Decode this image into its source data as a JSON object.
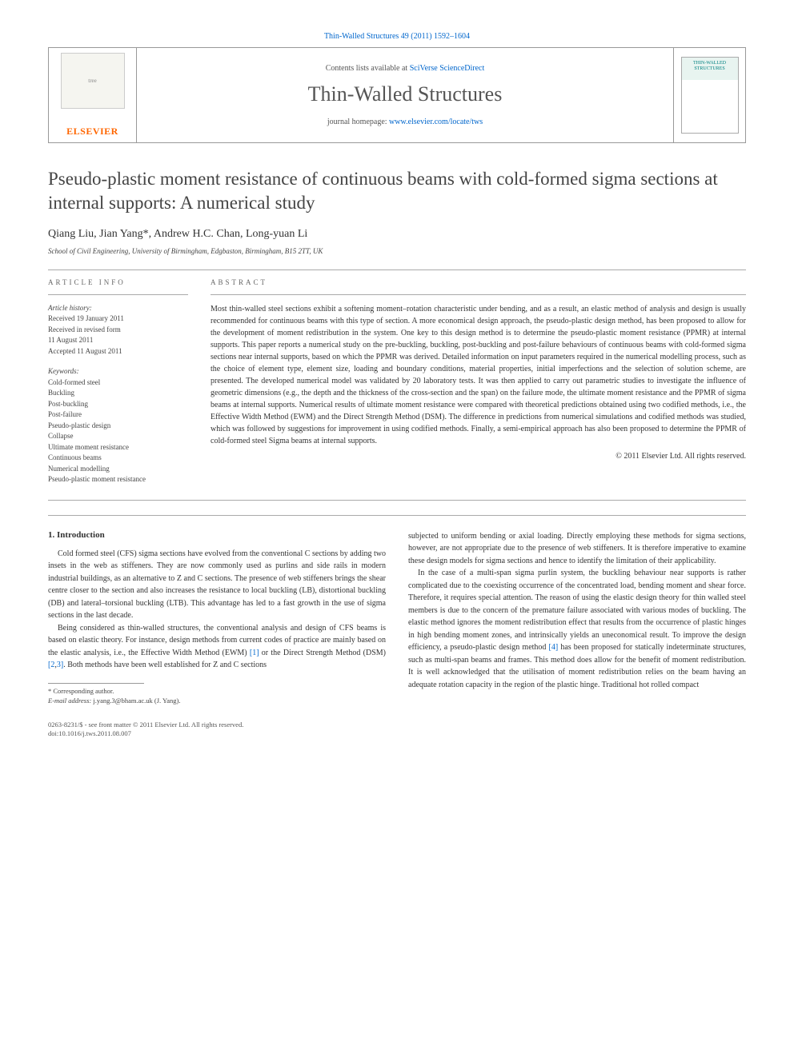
{
  "journal_ref": {
    "prefix": "",
    "link_text": "Thin-Walled Structures 49 (2011) 1592–1604",
    "link_color": "#0066cc"
  },
  "header": {
    "contents_prefix": "Contents lists available at ",
    "contents_link": "SciVerse ScienceDirect",
    "journal_name": "Thin-Walled Structures",
    "homepage_prefix": "journal homepage: ",
    "homepage_link": "www.elsevier.com/locate/tws",
    "publisher_logo_text": "ELSEVIER",
    "cover_title_line1": "THIN-WALLED",
    "cover_title_line2": "STRUCTURES"
  },
  "article": {
    "title": "Pseudo-plastic moment resistance of continuous beams with cold-formed sigma sections at internal supports: A numerical study",
    "authors": "Qiang Liu, Jian Yang",
    "corr_mark": "*",
    "authors_rest": ", Andrew H.C. Chan, Long-yuan Li",
    "affiliation": "School of Civil Engineering, University of Birmingham, Edgbaston, Birmingham, B15 2TT, UK"
  },
  "info": {
    "section_label": "article info",
    "history_label": "Article history:",
    "received": "Received 19 January 2011",
    "revised1": "Received in revised form",
    "revised2": "11 August 2011",
    "accepted": "Accepted 11 August 2011",
    "keywords_label": "Keywords:",
    "keywords": [
      "Cold-formed steel",
      "Buckling",
      "Post-buckling",
      "Post-failure",
      "Pseudo-plastic design",
      "Collapse",
      "Ultimate moment resistance",
      "Continuous beams",
      "Numerical modelling",
      "Pseudo-plastic moment resistance"
    ]
  },
  "abstract": {
    "section_label": "abstract",
    "text": "Most thin-walled steel sections exhibit a softening moment–rotation characteristic under bending, and as a result, an elastic method of analysis and design is usually recommended for continuous beams with this type of section. A more economical design approach, the pseudo-plastic design method, has been proposed to allow for the development of moment redistribution in the system. One key to this design method is to determine the pseudo-plastic moment resistance (PPMR) at internal supports. This paper reports a numerical study on the pre-buckling, buckling, post-buckling and post-failure behaviours of continuous beams with cold-formed sigma sections near internal supports, based on which the PPMR was derived. Detailed information on input parameters required in the numerical modelling process, such as the choice of element type, element size, loading and boundary conditions, material properties, initial imperfections and the selection of solution scheme, are presented. The developed numerical model was validated by 20 laboratory tests. It was then applied to carry out parametric studies to investigate the influence of geometric dimensions (e.g., the depth and the thickness of the cross-section and the span) on the failure mode, the ultimate moment resistance and the PPMR of sigma beams at internal supports. Numerical results of ultimate moment resistance were compared with theoretical predictions obtained using two codified methods, i.e., the Effective Width Method (EWM) and the Direct Strength Method (DSM). The difference in predictions from numerical simulations and codified methods was studied, which was followed by suggestions for improvement in using codified methods. Finally, a semi-empirical approach has also been proposed to determine the PPMR of cold-formed steel Sigma beams at internal supports.",
    "copyright": "© 2011 Elsevier Ltd. All rights reserved."
  },
  "body": {
    "heading": "1. Introduction",
    "p1": "Cold formed steel (CFS) sigma sections have evolved from the conventional C sections by adding two insets in the web as stiffeners. They are now commonly used as purlins and side rails in modern industrial buildings, as an alternative to Z and C sections. The presence of web stiffeners brings the shear centre closer to the section and also increases the resistance to local buckling (LB), distortional buckling (DB) and lateral–torsional buckling (LTB). This advantage has led to a fast growth in the use of sigma sections in the last decade.",
    "p2a": "Being considered as thin-walled structures, the conventional analysis and design of CFS beams is based on elastic theory. For instance, design methods from current codes of practice are mainly based on the elastic analysis, i.e., the Effective Width Method (EWM) ",
    "p2_ref1": "[1]",
    "p2b": " or the Direct Strength Method (DSM) ",
    "p2_ref2": "[2",
    "p2_comma": ",",
    "p2_ref3": "3]",
    "p2c": ". Both methods have been well established for Z and C sections ",
    "p3": "subjected to uniform bending or axial loading. Directly employing these methods for sigma sections, however, are not appropriate due to the presence of web stiffeners. It is therefore imperative to examine these design models for sigma sections and hence to identify the limitation of their applicability.",
    "p4a": "In the case of a multi-span sigma purlin system, the buckling behaviour near supports is rather complicated due to the coexisting occurrence of the concentrated load, bending moment and shear force. Therefore, it requires special attention. The reason of using the elastic design theory for thin walled steel members is due to the concern of the premature failure associated with various modes of buckling. The elastic method ignores the moment redistribution effect that results from the occurrence of plastic hinges in high bending moment zones, and intrinsically yields an uneconomical result. To improve the design efficiency, a pseudo-plastic design method ",
    "p4_ref": "[4]",
    "p4b": " has been proposed for statically indeterminate structures, such as multi-span beams and frames. This method does allow for the benefit of moment redistribution. It is well acknowledged that the utilisation of moment redistribution relies on the beam having an adequate rotation capacity in the region of the plastic hinge. Traditional hot rolled compact"
  },
  "footnote": {
    "corr": "* Corresponding author.",
    "email_label": "E-mail address:",
    "email": " j.yang.3@bham.ac.uk (J. Yang)."
  },
  "footer": {
    "line1": "0263-8231/$ - see front matter © 2011 Elsevier Ltd. All rights reserved.",
    "line2": "doi:10.1016/j.tws.2011.08.007"
  },
  "colors": {
    "link": "#0066cc",
    "publisher_orange": "#ff6600",
    "cover_teal": "#008080"
  }
}
